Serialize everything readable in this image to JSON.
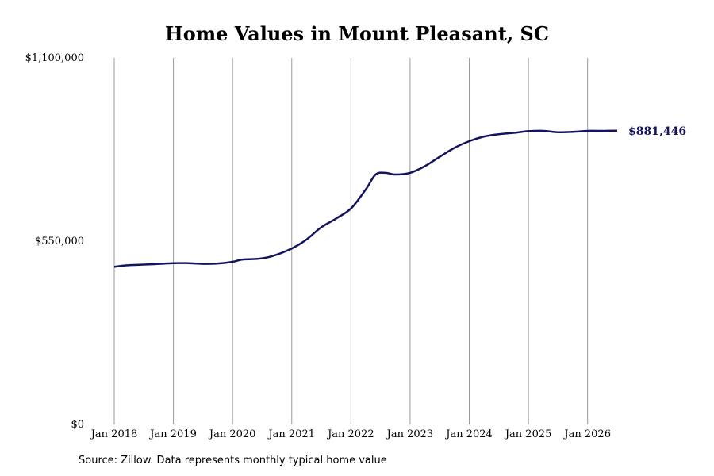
{
  "source_note": "Source: Zillow. Data represents monthly typical home value",
  "chart_data": {
    "type": "line",
    "title": "Home Values in Mount Pleasant, SC",
    "xlabel": "",
    "ylabel": "",
    "x_ticks": [
      "Jan 2018",
      "Jan 2019",
      "Jan 2020",
      "Jan 2021",
      "Jan 2022",
      "Jan 2023",
      "Jan 2024",
      "Jan 2025",
      "Jan 2026"
    ],
    "y_ticks": [
      "$0",
      "$550,000",
      "$1,100,000"
    ],
    "ylim": [
      0,
      1100000
    ],
    "xlim": [
      "2018-01",
      "2026-07"
    ],
    "grid": "vertical",
    "line_color": "#14145e",
    "end_label": "$881,446",
    "series": [
      {
        "x": [
          "2018-01",
          "2018-03",
          "2018-06",
          "2018-09",
          "2019-01",
          "2019-04",
          "2019-07",
          "2019-10",
          "2020-01",
          "2020-03",
          "2020-06",
          "2020-09",
          "2021-01",
          "2021-04",
          "2021-07",
          "2021-10",
          "2022-01",
          "2022-04",
          "2022-06",
          "2022-08",
          "2022-10",
          "2023-01",
          "2023-04",
          "2023-07",
          "2023-10",
          "2024-01",
          "2024-04",
          "2024-07",
          "2024-10",
          "2025-01",
          "2025-04",
          "2025-07",
          "2025-10",
          "2026-01",
          "2026-04",
          "2026-07"
        ],
        "values": [
          473000,
          477000,
          479000,
          481000,
          484000,
          484000,
          482000,
          483000,
          488000,
          495000,
          497000,
          505000,
          528000,
          555000,
          592000,
          618000,
          648000,
          705000,
          750000,
          755000,
          750000,
          755000,
          775000,
          803000,
          830000,
          850000,
          864000,
          871000,
          875000,
          880000,
          881000,
          877000,
          878000,
          881000,
          881000,
          881446
        ]
      }
    ]
  }
}
